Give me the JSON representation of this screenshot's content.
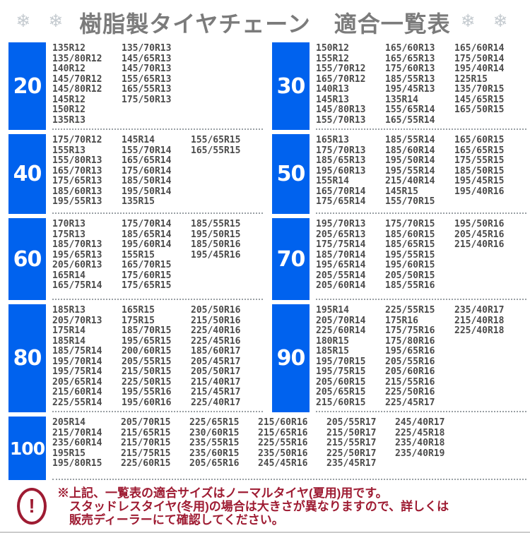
{
  "header": {
    "snowflakes": "❄ ❄",
    "title": "樹脂製タイヤチェーン　適合一覧表"
  },
  "colors": {
    "accent_blue": "#0062ee",
    "tire_text": "#4b4b4b",
    "title_gray": "#7b7b7b",
    "notice_red": "#9e1b32",
    "dot_separator": "#9aa0a4"
  },
  "sections": [
    {
      "size": "20",
      "full": false,
      "columns": [
        [
          "135R12",
          "135/80R12",
          "140R12",
          "145/70R12",
          "145/80R12",
          "145R12",
          "150R12",
          "135R13"
        ],
        [
          "135/70R13",
          "145/65R13",
          "145/70R13",
          "155/65R13",
          "165/55R13",
          "175/50R13"
        ]
      ]
    },
    {
      "size": "30",
      "full": false,
      "columns": [
        [
          "150R12",
          "155R12",
          "155/70R12",
          "165/70R12",
          "140R13",
          "145R13",
          "145/80R13",
          "155/70R13"
        ],
        [
          "165/60R13",
          "165/65R13",
          "175/60R13",
          "185/55R13",
          "195/45R13",
          "135R14",
          "155/65R14",
          "165/55R14"
        ],
        [
          "165/60R14",
          "175/50R14",
          "195/40R14",
          "125R15",
          "135/70R15",
          "145/65R15",
          "165/50R15"
        ]
      ]
    },
    {
      "size": "40",
      "full": false,
      "columns": [
        [
          "175/70R12",
          "155R13",
          "155/80R13",
          "165/70R13",
          "175/65R13",
          "185/60R13",
          "195/55R13"
        ],
        [
          "145R14",
          "155/70R14",
          "165/65R14",
          "175/60R14",
          "185/50R14",
          "195/50R14",
          "135R15"
        ],
        [
          "155/65R15",
          "165/55R15"
        ]
      ]
    },
    {
      "size": "50",
      "full": false,
      "columns": [
        [
          "165R13",
          "175/70R13",
          "185/65R13",
          "195/60R13",
          "155R14",
          "165/70R14",
          "175/65R14"
        ],
        [
          "185/55R14",
          "185/60R14",
          "195/50R14",
          "195/55R14",
          "215/40R14",
          "145R15",
          "155/70R15"
        ],
        [
          "165/60R15",
          "165/65R15",
          "175/55R15",
          "185/50R15",
          "195/45R15",
          "195/40R16"
        ]
      ]
    },
    {
      "size": "60",
      "full": false,
      "columns": [
        [
          "170R13",
          "175R13",
          "185/70R13",
          "195/65R13",
          "205/60R13",
          "165R14",
          "165/75R14"
        ],
        [
          "175/70R14",
          "185/65R14",
          "195/60R14",
          "155R15",
          "165/70R15",
          "175/60R15",
          "175/65R15"
        ],
        [
          "185/55R15",
          "195/50R15",
          "185/50R16",
          "195/45R16"
        ]
      ]
    },
    {
      "size": "70",
      "full": false,
      "columns": [
        [
          "195/70R13",
          "205/65R13",
          "175/75R14",
          "185/70R14",
          "195/65R14",
          "205/55R14",
          "205/60R14"
        ],
        [
          "175/70R15",
          "185/60R15",
          "185/65R15",
          "195/55R15",
          "195/60R15",
          "205/50R15",
          "185/55R16"
        ],
        [
          "195/50R16",
          "205/45R16",
          "215/40R16"
        ]
      ]
    },
    {
      "size": "80",
      "full": false,
      "columns": [
        [
          "185R13",
          "205/70R13",
          "175R14",
          "185R14",
          "185/75R14",
          "195/70R14",
          "195/75R14",
          "205/65R14",
          "215/60R14",
          "225/55R14"
        ],
        [
          "165R15",
          "175R15",
          "185/70R15",
          "195/65R15",
          "200/60R15",
          "205/55R15",
          "215/50R15",
          "225/50R15",
          "195/55R16",
          "195/60R16"
        ],
        [
          "205/50R16",
          "215/50R16",
          "225/40R16",
          "225/45R16",
          "185/60R17",
          "205/45R17",
          "205/50R17",
          "215/40R17",
          "215/45R17",
          "225/40R17"
        ]
      ]
    },
    {
      "size": "90",
      "full": false,
      "columns": [
        [
          "195R14",
          "205/70R14",
          "225/60R14",
          "180R15",
          "185R15",
          "195/70R15",
          "195/75R15",
          "205/60R15",
          "205/65R15",
          "215/60R15"
        ],
        [
          "225/55R15",
          "175R16",
          "175/75R16",
          "175/80R16",
          "195/65R16",
          "205/55R16",
          "205/60R16",
          "215/55R16",
          "225/50R16",
          "225/45R17"
        ],
        [
          "235/40R17",
          "215/40R18",
          "225/40R18"
        ]
      ]
    },
    {
      "size": "100",
      "full": true,
      "columns": [
        [
          "205R14",
          "215/70R14",
          "235/60R14",
          "195R15",
          "195/80R15"
        ],
        [
          "205/70R15",
          "215/65R15",
          "215/70R15",
          "215/75R15",
          "225/60R15"
        ],
        [
          "225/65R15",
          "230/60R15",
          "235/55R15",
          "235/60R15",
          "205/65R16"
        ],
        [
          "215/60R16",
          "215/65R16",
          "225/55R16",
          "235/50R16",
          "245/45R16"
        ],
        [
          "205/55R17",
          "215/50R17",
          "215/55R17",
          "225/50R17",
          "235/45R17"
        ],
        [
          "245/40R17",
          "225/45R18",
          "235/40R18",
          "235/40R19"
        ]
      ]
    }
  ],
  "notice": {
    "icon": "!",
    "lines": [
      "※上記、一覧表の適合サイズはノーマルタイヤ(夏用)用です。",
      "スタッドレスタイヤ(冬用)の場合は大きさが異なりますので、詳しくは",
      "販売ディーラーにて確認してください。"
    ]
  }
}
